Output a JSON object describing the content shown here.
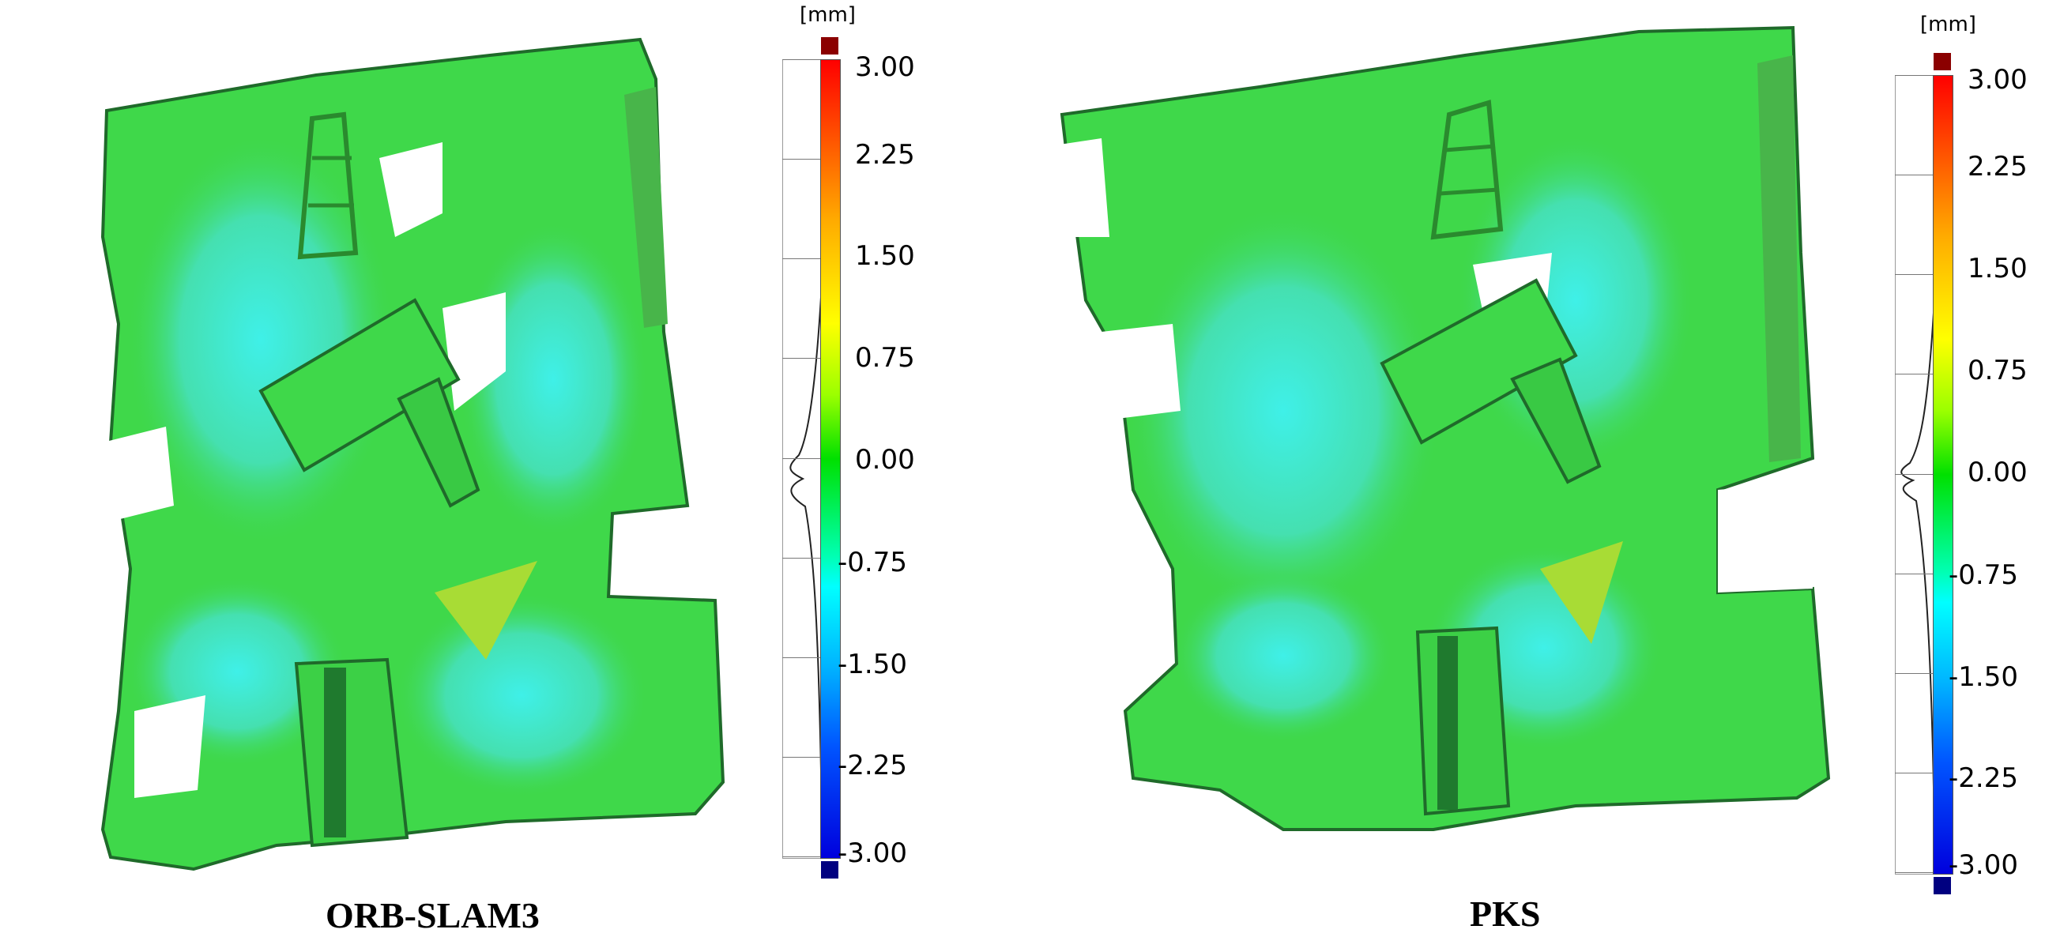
{
  "panels": [
    {
      "caption": "ORB-SLAM3",
      "unit": "[mm]",
      "ticks": [
        "3.00",
        "2.25",
        "1.50",
        "0.75",
        "0.00",
        "-0.75",
        "-1.50",
        "-2.25",
        "-3.00"
      ]
    },
    {
      "caption": "PKS",
      "unit": "[mm]",
      "ticks": [
        "3.00",
        "2.25",
        "1.50",
        "0.75",
        "0.00",
        "-0.75",
        "-1.50",
        "-2.25",
        "-3.00"
      ]
    }
  ],
  "colors": {
    "max_cap": "#8b0000",
    "min_cap": "#000080",
    "surface_main": "#3fd84a",
    "surface_cool": "#45e6d8",
    "surface_dark": "#1f7a2e"
  }
}
